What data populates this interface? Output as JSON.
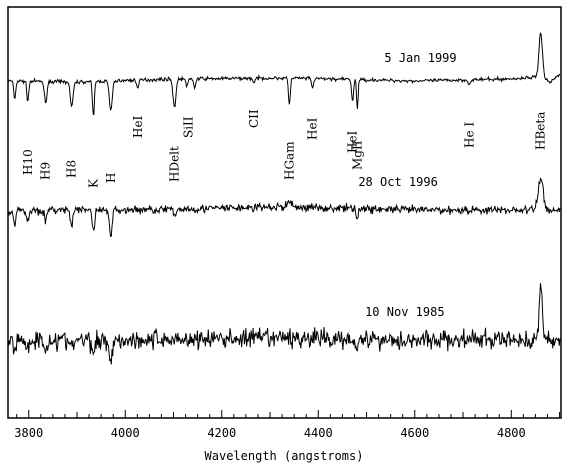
{
  "chart_data": {
    "type": "line",
    "xlabel": "Wavelength (angstroms)",
    "xlim": [
      3757,
      4903
    ],
    "x_ticks": [
      3800,
      4000,
      4200,
      4400,
      4600,
      4800
    ],
    "x_tick_labels": [
      "3800",
      "4000",
      "4200",
      "4400",
      "4600",
      "4800"
    ],
    "y_ticks_shown": false,
    "series": [
      {
        "name": "5 Jan 1999",
        "noise": 1.2,
        "continuum": [
          [
            3757,
            0
          ],
          [
            3900,
            -1
          ],
          [
            4100,
            2
          ],
          [
            4340,
            3
          ],
          [
            4600,
            0
          ],
          [
            4800,
            2
          ],
          [
            4903,
            6
          ]
        ],
        "features": [
          {
            "x": 3771,
            "depth": 18,
            "width": 2
          },
          {
            "x": 3798,
            "depth": 20,
            "width": 2
          },
          {
            "x": 3835,
            "depth": 22,
            "width": 2.5
          },
          {
            "x": 3889,
            "depth": 24,
            "width": 3
          },
          {
            "x": 3934,
            "depth": 35,
            "width": 2
          },
          {
            "x": 3970,
            "depth": 30,
            "width": 3
          },
          {
            "x": 4026,
            "depth": 8,
            "width": 2
          },
          {
            "x": 4102,
            "depth": 28,
            "width": 3
          },
          {
            "x": 4128,
            "depth": 8,
            "width": 2
          },
          {
            "x": 4144,
            "depth": 9,
            "width": 2
          },
          {
            "x": 4267,
            "depth": 5,
            "width": 2
          },
          {
            "x": 4340,
            "depth": 26,
            "width": 2
          },
          {
            "x": 4388,
            "depth": 10,
            "width": 2
          },
          {
            "x": 4471,
            "depth": 22,
            "width": 2
          },
          {
            "x": 4481,
            "depth": 30,
            "width": 1.5
          },
          {
            "x": 4713,
            "depth": 5,
            "width": 2
          },
          {
            "x": 4861,
            "depth": -45,
            "width": 3.5
          },
          {
            "x": 4880,
            "depth": 6,
            "width": 8
          }
        ]
      },
      {
        "name": "28 Oct 1996",
        "noise": 3,
        "continuum": [
          [
            3757,
            0
          ],
          [
            4000,
            0
          ],
          [
            4340,
            3
          ],
          [
            4600,
            0
          ],
          [
            4800,
            0
          ],
          [
            4903,
            0
          ]
        ],
        "features": [
          {
            "x": 3771,
            "depth": 14,
            "width": 2.5
          },
          {
            "x": 3798,
            "depth": 12,
            "width": 2.5
          },
          {
            "x": 3835,
            "depth": 12,
            "width": 2.5
          },
          {
            "x": 3889,
            "depth": 14,
            "width": 3
          },
          {
            "x": 3934,
            "depth": 20,
            "width": 2.5
          },
          {
            "x": 3970,
            "depth": 24,
            "width": 3
          },
          {
            "x": 4102,
            "depth": 8,
            "width": 3
          },
          {
            "x": 4340,
            "depth": -5,
            "width": 5
          },
          {
            "x": 4481,
            "depth": 8,
            "width": 2
          },
          {
            "x": 4861,
            "depth": -32,
            "width": 5
          }
        ]
      },
      {
        "name": "10 Nov 1985",
        "noise": 7,
        "continuum": [
          [
            3757,
            0
          ],
          [
            4000,
            0
          ],
          [
            4340,
            2
          ],
          [
            4600,
            0
          ],
          [
            4800,
            0
          ],
          [
            4903,
            0
          ]
        ],
        "features": [
          {
            "x": 3771,
            "depth": 12,
            "width": 2.5
          },
          {
            "x": 3798,
            "depth": 10,
            "width": 2.5
          },
          {
            "x": 3835,
            "depth": 10,
            "width": 2.5
          },
          {
            "x": 3889,
            "depth": 10,
            "width": 3
          },
          {
            "x": 3934,
            "depth": 18,
            "width": 2.5
          },
          {
            "x": 3970,
            "depth": 20,
            "width": 3
          },
          {
            "x": 4481,
            "depth": 6,
            "width": 2
          },
          {
            "x": 4861,
            "depth": -55,
            "width": 3
          }
        ]
      }
    ],
    "annotations": [
      {
        "text": "H10",
        "x": 3798,
        "rotate": true
      },
      {
        "text": "H9",
        "x": 3835,
        "rotate": true
      },
      {
        "text": "H8",
        "x": 3889,
        "rotate": true
      },
      {
        "text": "K",
        "x": 3934,
        "rotate": true
      },
      {
        "text": "H",
        "x": 3970,
        "rotate": true
      },
      {
        "text": "HeI",
        "x": 4026,
        "rotate": true
      },
      {
        "text": "HDelt",
        "x": 4102,
        "rotate": true
      },
      {
        "text": "SiII",
        "x": 4131,
        "rotate": true
      },
      {
        "text": "CII",
        "x": 4267,
        "rotate": true
      },
      {
        "text": "HGam",
        "x": 4340,
        "rotate": true
      },
      {
        "text": "HeI",
        "x": 4388,
        "rotate": true
      },
      {
        "text": "HeI",
        "x": 4471,
        "rotate": true
      },
      {
        "text": "MgII",
        "x": 4481,
        "rotate": true
      },
      {
        "text": "He I",
        "x": 4713,
        "rotate": true
      },
      {
        "text": "HBeta",
        "x": 4861,
        "rotate": true
      }
    ]
  }
}
